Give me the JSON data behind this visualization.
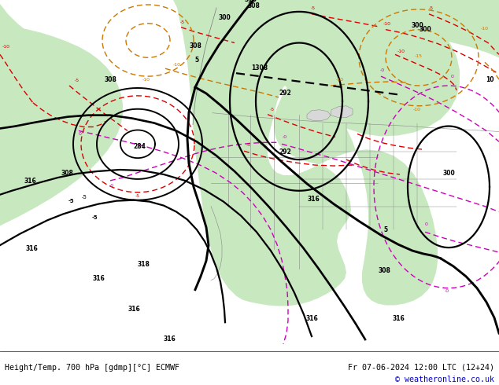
{
  "title_left": "Height/Temp. 700 hPa [gdmp][°C] ECMWF",
  "title_right": "Fr 07-06-2024 12:00 LTC (12+24)",
  "copyright": "© weatheronline.co.uk",
  "ocean_color": "#d8d8d8",
  "land_color": "#c8e8c0",
  "land_detail_color": "#b8b8b8",
  "footer_bg": "#ffffff",
  "black_lw": 1.6,
  "red_lw": 1.0,
  "magenta_lw": 1.0,
  "orange_lw": 1.0,
  "border_color": "#888888",
  "border_lw": 0.4
}
